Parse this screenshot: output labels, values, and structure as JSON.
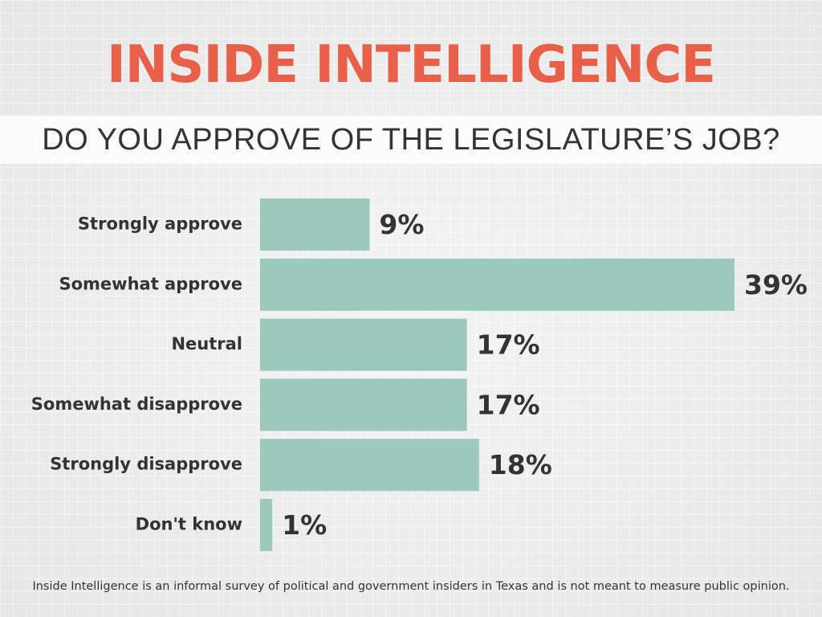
{
  "title": "INSIDE INTELLIGENCE",
  "subtitle": "DO YOU APPROVE OF THE LEGISLATURE’S JOB?",
  "footnote": "Inside Intelligence is an informal survey of political and government insiders in Texas and is not meant to measure public opinion.",
  "colors": {
    "title": "#e8604a",
    "bar": "#9cc9bd",
    "text": "#333333"
  },
  "chart_data": {
    "type": "bar",
    "orientation": "horizontal",
    "categories": [
      "Strongly approve",
      "Somewhat approve",
      "Neutral",
      "Somewhat disapprove",
      "Strongly disapprove",
      "Don't know"
    ],
    "values": [
      9,
      39,
      17,
      17,
      18,
      1
    ],
    "value_labels": [
      "9%",
      "39%",
      "17%",
      "17%",
      "18%",
      "1%"
    ],
    "title": "DO YOU APPROVE OF THE LEGISLATURE’S JOB?",
    "xlabel": "",
    "ylabel": "",
    "xlim": [
      0,
      39
    ],
    "grid": false
  }
}
